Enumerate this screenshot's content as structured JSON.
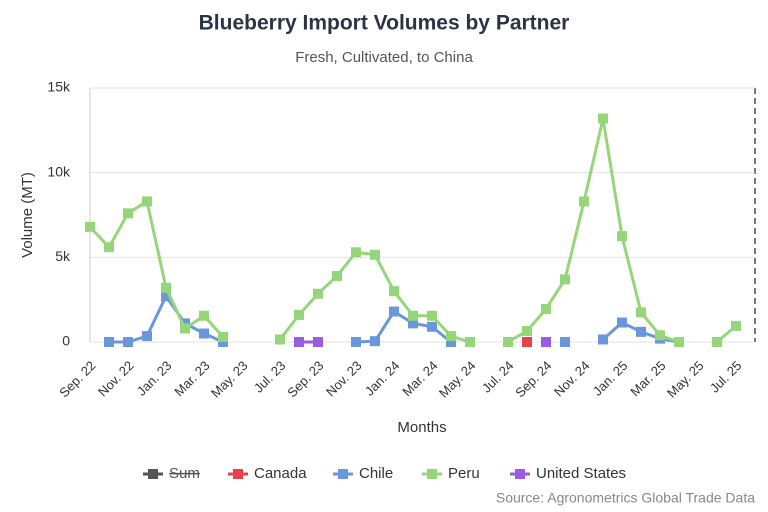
{
  "chart_data": {
    "type": "line",
    "title": "Blueberry Import Volumes by Partner",
    "subtitle": "Fresh, Cultivated, to China",
    "x_label": "Months",
    "y_label": "Volume (MT)",
    "source": "Source: Agronometrics Global Trade Data",
    "categories": [
      "Sep. 22",
      null,
      "Nov. 22",
      null,
      "Jan. 23",
      null,
      "Mar. 23",
      null,
      "May. 23",
      null,
      "Jul. 23",
      null,
      "Sep. 23",
      null,
      "Nov. 23",
      null,
      "Jan. 24",
      null,
      "Mar. 24",
      null,
      "May. 24",
      null,
      "Jul. 24",
      null,
      "Sep. 24",
      null,
      "Nov. 24",
      null,
      "Jan. 25",
      null,
      "Mar. 25",
      null,
      "May. 25",
      null,
      "Jul. 25"
    ],
    "ylim": [
      0,
      15000
    ],
    "yticks": [
      0,
      {
        "value": 5000,
        "label": "5k"
      },
      {
        "value": 10000,
        "label": "10k"
      },
      {
        "value": 15000,
        "label": "15k"
      }
    ],
    "grid": true,
    "series": [
      {
        "name": "Sum",
        "color": "#555555",
        "hidden": true,
        "values": [
          null,
          null,
          null,
          null,
          null,
          null,
          null,
          null,
          null,
          null,
          null,
          null,
          null,
          null,
          null,
          null,
          null,
          null,
          null,
          null,
          null,
          null,
          null,
          null,
          null,
          null,
          null,
          null,
          null,
          null,
          null,
          null,
          null,
          null,
          null
        ]
      },
      {
        "name": "Canada",
        "color": "#e8424d",
        "values": [
          null,
          null,
          null,
          null,
          null,
          null,
          null,
          null,
          null,
          null,
          null,
          null,
          null,
          null,
          null,
          null,
          null,
          null,
          null,
          null,
          null,
          null,
          null,
          0,
          null,
          null,
          null,
          null,
          null,
          null,
          null,
          null,
          null,
          null,
          null
        ]
      },
      {
        "name": "Chile",
        "color": "#6a96dc",
        "values": [
          null,
          0,
          0,
          350,
          2700,
          1100,
          500,
          0,
          null,
          null,
          null,
          null,
          null,
          null,
          0,
          50,
          1800,
          1100,
          900,
          0,
          null,
          null,
          null,
          null,
          null,
          0,
          null,
          150,
          1150,
          600,
          200,
          0,
          null,
          null,
          null
        ]
      },
      {
        "name": "Peru",
        "color": "#96d67a",
        "values": [
          6800,
          5600,
          7600,
          8300,
          3200,
          800,
          1550,
          300,
          null,
          null,
          150,
          1600,
          2850,
          3900,
          5300,
          5150,
          3000,
          1550,
          1550,
          350,
          0,
          null,
          0,
          650,
          1950,
          3700,
          8300,
          13200,
          6250,
          1750,
          400,
          0,
          null,
          0,
          950
        ]
      },
      {
        "name": "United States",
        "color": "#9a5ce0",
        "values": [
          null,
          null,
          null,
          null,
          null,
          null,
          null,
          null,
          null,
          null,
          null,
          0,
          0,
          null,
          null,
          null,
          null,
          null,
          null,
          null,
          null,
          null,
          null,
          null,
          0,
          null,
          null,
          null,
          null,
          null,
          null,
          null,
          null,
          null,
          null
        ]
      }
    ]
  }
}
